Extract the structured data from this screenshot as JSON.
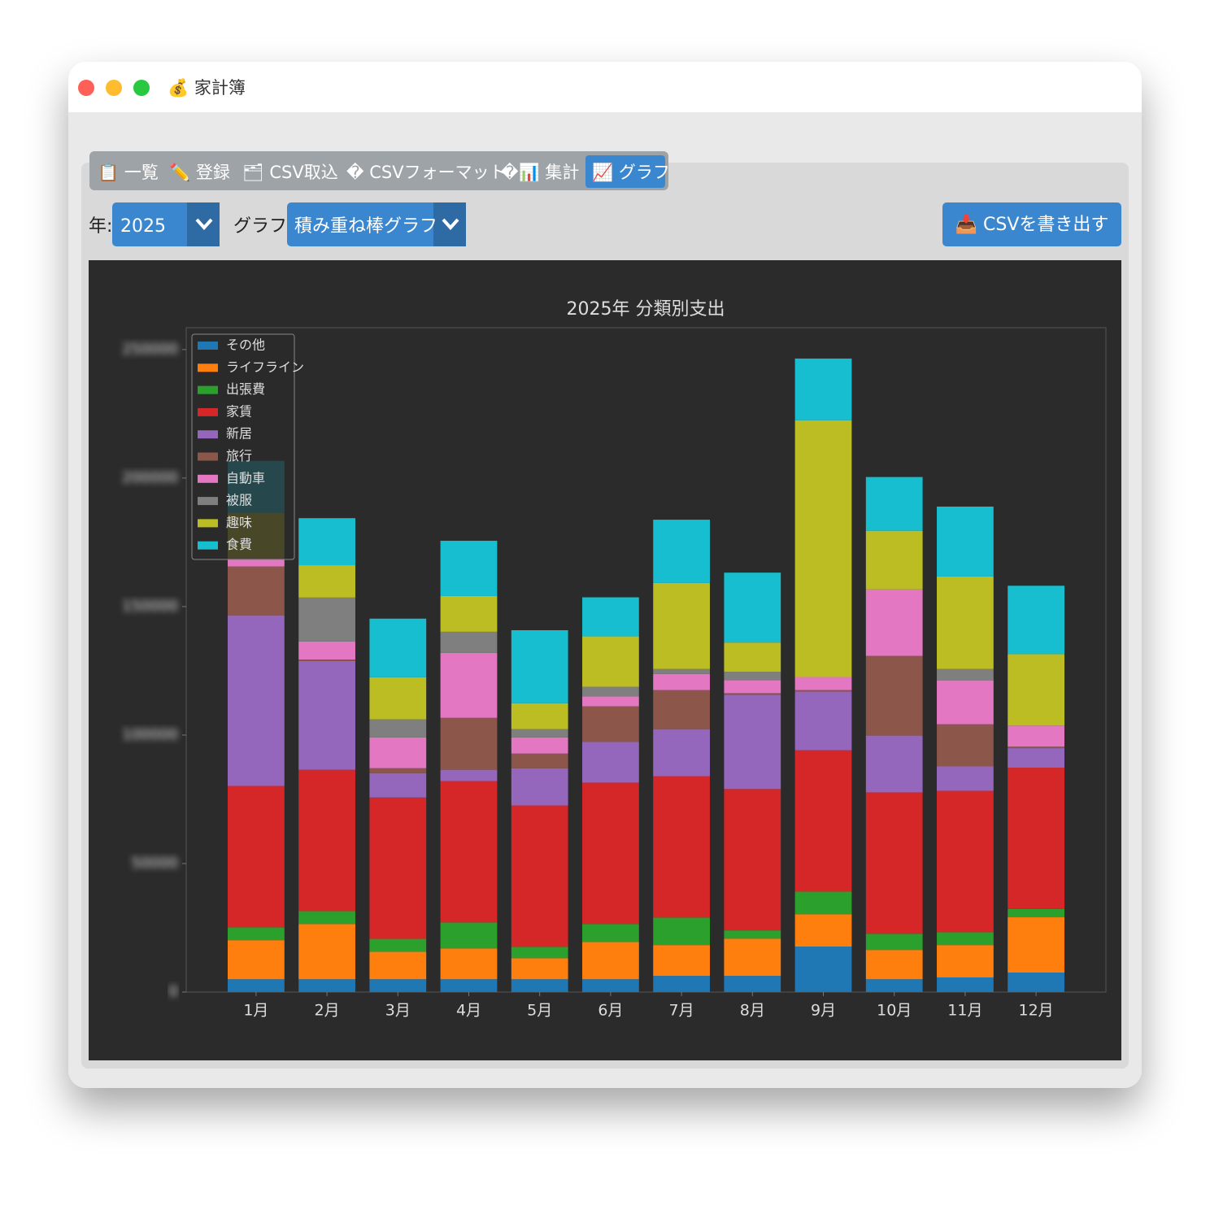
{
  "window": {
    "title": "💰 家計簿"
  },
  "tabs": [
    "📋 一覧",
    "✏️ 登録",
    "🗂 CSV取込",
    "� CSVフォーマット",
    "�📊 集計",
    "📈 グラフ"
  ],
  "controls": {
    "year_label": "年:",
    "year": "2025",
    "graph_label": "グラフ:",
    "graph_type": "積み重ね棒グラフ",
    "export_button": "📥 CSVを書き出す"
  },
  "chart_data": {
    "type": "stacked_bar",
    "title": "2025年 分類別支出",
    "categories": [
      "1月",
      "2月",
      "3月",
      "4月",
      "5月",
      "6月",
      "7月",
      "8月",
      "9月",
      "10月",
      "11月",
      "12月"
    ],
    "series": [
      {
        "name": "その他",
        "color": "#1f77b4",
        "values": [
          5000,
          5000,
          5000,
          5000,
          5000,
          5000,
          6300,
          6300,
          17700,
          5000,
          5700,
          7600
        ]
      },
      {
        "name": "ライフライン",
        "color": "#ff7f0e",
        "values": [
          15200,
          21500,
          10700,
          12000,
          8200,
          14500,
          12000,
          14500,
          12600,
          11400,
          12600,
          21500
        ]
      },
      {
        "name": "出張費",
        "color": "#2ca02c",
        "values": [
          5000,
          5000,
          5000,
          10100,
          4400,
          7000,
          10700,
          3200,
          8800,
          6300,
          5000,
          3200
        ]
      },
      {
        "name": "家賃",
        "color": "#d62728",
        "values": [
          55000,
          55000,
          55000,
          55000,
          55000,
          55000,
          55000,
          55000,
          55000,
          55000,
          55000,
          55000
        ]
      },
      {
        "name": "新居",
        "color": "#9467bd",
        "values": [
          66400,
          42300,
          9500,
          4400,
          14500,
          15800,
          18300,
          36700,
          22800,
          22100,
          9500,
          7600
        ]
      },
      {
        "name": "旅行",
        "color": "#8c564b",
        "values": [
          19000,
          600,
          1900,
          20200,
          5700,
          13900,
          15200,
          600,
          600,
          31000,
          16400,
          600
        ]
      },
      {
        "name": "自動車",
        "color": "#e377c2",
        "values": [
          3200,
          7000,
          12000,
          25300,
          6300,
          3800,
          6300,
          5100,
          5100,
          25900,
          17100,
          8200
        ]
      },
      {
        "name": "被服",
        "color": "#7f7f7f",
        "values": [
          0,
          17100,
          7000,
          8200,
          3200,
          3800,
          1900,
          3200,
          0,
          0,
          4400,
          0
        ]
      },
      {
        "name": "趣味",
        "color": "#bcbd22",
        "values": [
          17700,
          12600,
          16400,
          13900,
          10100,
          19600,
          33500,
          11400,
          99900,
          22800,
          36000,
          27800
        ]
      },
      {
        "name": "食費",
        "color": "#17becf",
        "values": [
          20200,
          18300,
          22800,
          21500,
          28400,
          15200,
          24600,
          27200,
          24000,
          20900,
          27200,
          26600
        ]
      }
    ],
    "ylim": [
      0,
      258500
    ],
    "yticks": [
      0,
      50000,
      100000,
      150000,
      200000,
      250000
    ],
    "legend": "upper left"
  }
}
